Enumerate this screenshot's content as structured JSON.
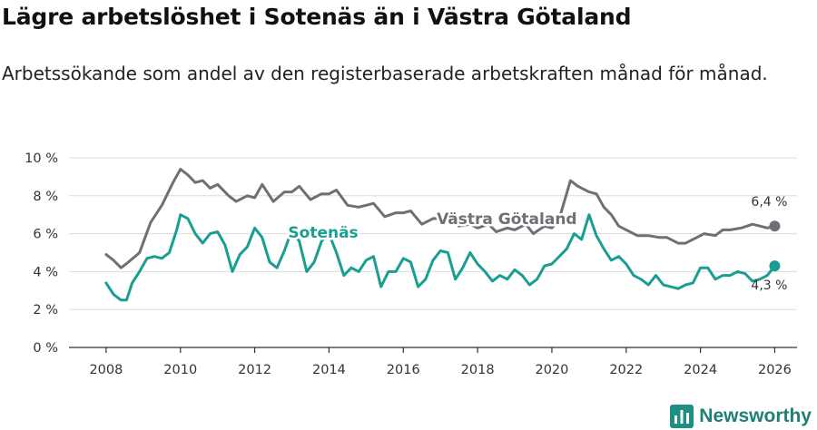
{
  "title": "Lägre arbetslöshet i Sotenäs än i Västra Götaland",
  "subtitle": "Arbetssökande som andel av den registerbaserade arbetskraften månad för månad.",
  "brand": {
    "name": "Newsworthy",
    "icon": "newsworthy-logo-icon",
    "color": "#1f8f84"
  },
  "chart_data": {
    "type": "line",
    "title": "Lägre arbetslöshet i Sotenäs än i Västra Götaland",
    "xlabel": "",
    "ylabel": "",
    "xlim": [
      2007,
      2026.6
    ],
    "ylim": [
      0,
      10
    ],
    "grid": true,
    "x_ticks": [
      2008,
      2010,
      2012,
      2014,
      2016,
      2018,
      2020,
      2022,
      2024,
      2026
    ],
    "x_tick_labels": [
      "2008",
      "2010",
      "2012",
      "2014",
      "2016",
      "2018",
      "2020",
      "2022",
      "2024",
      "2026"
    ],
    "y_ticks": [
      0,
      2,
      4,
      6,
      8,
      10
    ],
    "y_tick_labels": [
      "0 %",
      "2 %",
      "4 %",
      "6 %",
      "8 %",
      "10 %"
    ],
    "series": [
      {
        "name": "Västra Götaland",
        "label": "Västra Götaland",
        "color": "#6f6f75",
        "end_label": "6,4 %",
        "points": [
          [
            2008.0,
            4.9
          ],
          [
            2008.2,
            4.6
          ],
          [
            2008.4,
            4.2
          ],
          [
            2008.6,
            4.5
          ],
          [
            2008.9,
            5.0
          ],
          [
            2009.2,
            6.6
          ],
          [
            2009.5,
            7.5
          ],
          [
            2009.8,
            8.7
          ],
          [
            2010.0,
            9.4
          ],
          [
            2010.2,
            9.1
          ],
          [
            2010.4,
            8.7
          ],
          [
            2010.6,
            8.8
          ],
          [
            2010.8,
            8.4
          ],
          [
            2011.0,
            8.6
          ],
          [
            2011.3,
            8.0
          ],
          [
            2011.5,
            7.7
          ],
          [
            2011.8,
            8.0
          ],
          [
            2012.0,
            7.9
          ],
          [
            2012.2,
            8.6
          ],
          [
            2012.5,
            7.7
          ],
          [
            2012.8,
            8.2
          ],
          [
            2013.0,
            8.2
          ],
          [
            2013.2,
            8.5
          ],
          [
            2013.5,
            7.8
          ],
          [
            2013.8,
            8.1
          ],
          [
            2014.0,
            8.1
          ],
          [
            2014.2,
            8.3
          ],
          [
            2014.5,
            7.5
          ],
          [
            2014.8,
            7.4
          ],
          [
            2015.0,
            7.5
          ],
          [
            2015.2,
            7.6
          ],
          [
            2015.5,
            6.9
          ],
          [
            2015.8,
            7.1
          ],
          [
            2016.0,
            7.1
          ],
          [
            2016.2,
            7.2
          ],
          [
            2016.5,
            6.5
          ],
          [
            2016.8,
            6.8
          ],
          [
            2017.0,
            6.8
          ],
          [
            2017.2,
            6.9
          ],
          [
            2017.5,
            6.4
          ],
          [
            2017.8,
            6.5
          ],
          [
            2018.0,
            6.3
          ],
          [
            2018.3,
            6.5
          ],
          [
            2018.5,
            6.1
          ],
          [
            2018.8,
            6.3
          ],
          [
            2019.0,
            6.2
          ],
          [
            2019.3,
            6.5
          ],
          [
            2019.5,
            6.0
          ],
          [
            2019.8,
            6.4
          ],
          [
            2020.0,
            6.3
          ],
          [
            2020.2,
            6.8
          ],
          [
            2020.5,
            8.8
          ],
          [
            2020.7,
            8.5
          ],
          [
            2021.0,
            8.2
          ],
          [
            2021.2,
            8.1
          ],
          [
            2021.4,
            7.4
          ],
          [
            2021.6,
            7.0
          ],
          [
            2021.8,
            6.4
          ],
          [
            2022.0,
            6.2
          ],
          [
            2022.3,
            5.9
          ],
          [
            2022.6,
            5.9
          ],
          [
            2022.9,
            5.8
          ],
          [
            2023.1,
            5.8
          ],
          [
            2023.4,
            5.5
          ],
          [
            2023.6,
            5.5
          ],
          [
            2023.9,
            5.8
          ],
          [
            2024.1,
            6.0
          ],
          [
            2024.4,
            5.9
          ],
          [
            2024.6,
            6.2
          ],
          [
            2024.8,
            6.2
          ],
          [
            2025.1,
            6.3
          ],
          [
            2025.4,
            6.5
          ],
          [
            2025.6,
            6.4
          ],
          [
            2025.8,
            6.3
          ],
          [
            2026.0,
            6.4
          ]
        ]
      },
      {
        "name": "Sotenäs",
        "label": "Sotenäs",
        "color": "#1a9e92",
        "end_label": "4,3 %",
        "points": [
          [
            2008.0,
            3.4
          ],
          [
            2008.2,
            2.8
          ],
          [
            2008.4,
            2.5
          ],
          [
            2008.55,
            2.5
          ],
          [
            2008.7,
            3.4
          ],
          [
            2008.9,
            4.0
          ],
          [
            2009.1,
            4.7
          ],
          [
            2009.3,
            4.8
          ],
          [
            2009.5,
            4.7
          ],
          [
            2009.7,
            5.0
          ],
          [
            2009.9,
            6.2
          ],
          [
            2010.0,
            7.0
          ],
          [
            2010.2,
            6.8
          ],
          [
            2010.4,
            6.0
          ],
          [
            2010.6,
            5.5
          ],
          [
            2010.8,
            6.0
          ],
          [
            2011.0,
            6.1
          ],
          [
            2011.2,
            5.4
          ],
          [
            2011.4,
            4.0
          ],
          [
            2011.6,
            4.9
          ],
          [
            2011.8,
            5.3
          ],
          [
            2012.0,
            6.3
          ],
          [
            2012.2,
            5.8
          ],
          [
            2012.4,
            4.5
          ],
          [
            2012.6,
            4.2
          ],
          [
            2012.8,
            5.1
          ],
          [
            2013.0,
            6.2
          ],
          [
            2013.2,
            5.6
          ],
          [
            2013.4,
            4.0
          ],
          [
            2013.6,
            4.5
          ],
          [
            2013.8,
            5.6
          ],
          [
            2014.0,
            6.0
          ],
          [
            2014.2,
            5.0
          ],
          [
            2014.4,
            3.8
          ],
          [
            2014.6,
            4.2
          ],
          [
            2014.8,
            4.0
          ],
          [
            2015.0,
            4.6
          ],
          [
            2015.2,
            4.8
          ],
          [
            2015.4,
            3.2
          ],
          [
            2015.6,
            4.0
          ],
          [
            2015.8,
            4.0
          ],
          [
            2016.0,
            4.7
          ],
          [
            2016.2,
            4.5
          ],
          [
            2016.4,
            3.2
          ],
          [
            2016.6,
            3.6
          ],
          [
            2016.8,
            4.6
          ],
          [
            2017.0,
            5.1
          ],
          [
            2017.2,
            5.0
          ],
          [
            2017.4,
            3.6
          ],
          [
            2017.6,
            4.2
          ],
          [
            2017.8,
            5.0
          ],
          [
            2018.0,
            4.4
          ],
          [
            2018.2,
            4.0
          ],
          [
            2018.4,
            3.5
          ],
          [
            2018.6,
            3.8
          ],
          [
            2018.8,
            3.6
          ],
          [
            2019.0,
            4.1
          ],
          [
            2019.2,
            3.8
          ],
          [
            2019.4,
            3.3
          ],
          [
            2019.6,
            3.6
          ],
          [
            2019.8,
            4.3
          ],
          [
            2020.0,
            4.4
          ],
          [
            2020.2,
            4.8
          ],
          [
            2020.4,
            5.2
          ],
          [
            2020.6,
            6.0
          ],
          [
            2020.8,
            5.7
          ],
          [
            2021.0,
            7.0
          ],
          [
            2021.2,
            5.9
          ],
          [
            2021.4,
            5.2
          ],
          [
            2021.6,
            4.6
          ],
          [
            2021.8,
            4.8
          ],
          [
            2022.0,
            4.4
          ],
          [
            2022.2,
            3.8
          ],
          [
            2022.4,
            3.6
          ],
          [
            2022.6,
            3.3
          ],
          [
            2022.8,
            3.8
          ],
          [
            2023.0,
            3.3
          ],
          [
            2023.2,
            3.2
          ],
          [
            2023.4,
            3.1
          ],
          [
            2023.6,
            3.3
          ],
          [
            2023.8,
            3.4
          ],
          [
            2024.0,
            4.2
          ],
          [
            2024.2,
            4.2
          ],
          [
            2024.4,
            3.6
          ],
          [
            2024.6,
            3.8
          ],
          [
            2024.8,
            3.8
          ],
          [
            2025.0,
            4.0
          ],
          [
            2025.2,
            3.9
          ],
          [
            2025.4,
            3.5
          ],
          [
            2025.6,
            3.6
          ],
          [
            2025.8,
            3.8
          ],
          [
            2026.0,
            4.3
          ]
        ]
      }
    ]
  }
}
